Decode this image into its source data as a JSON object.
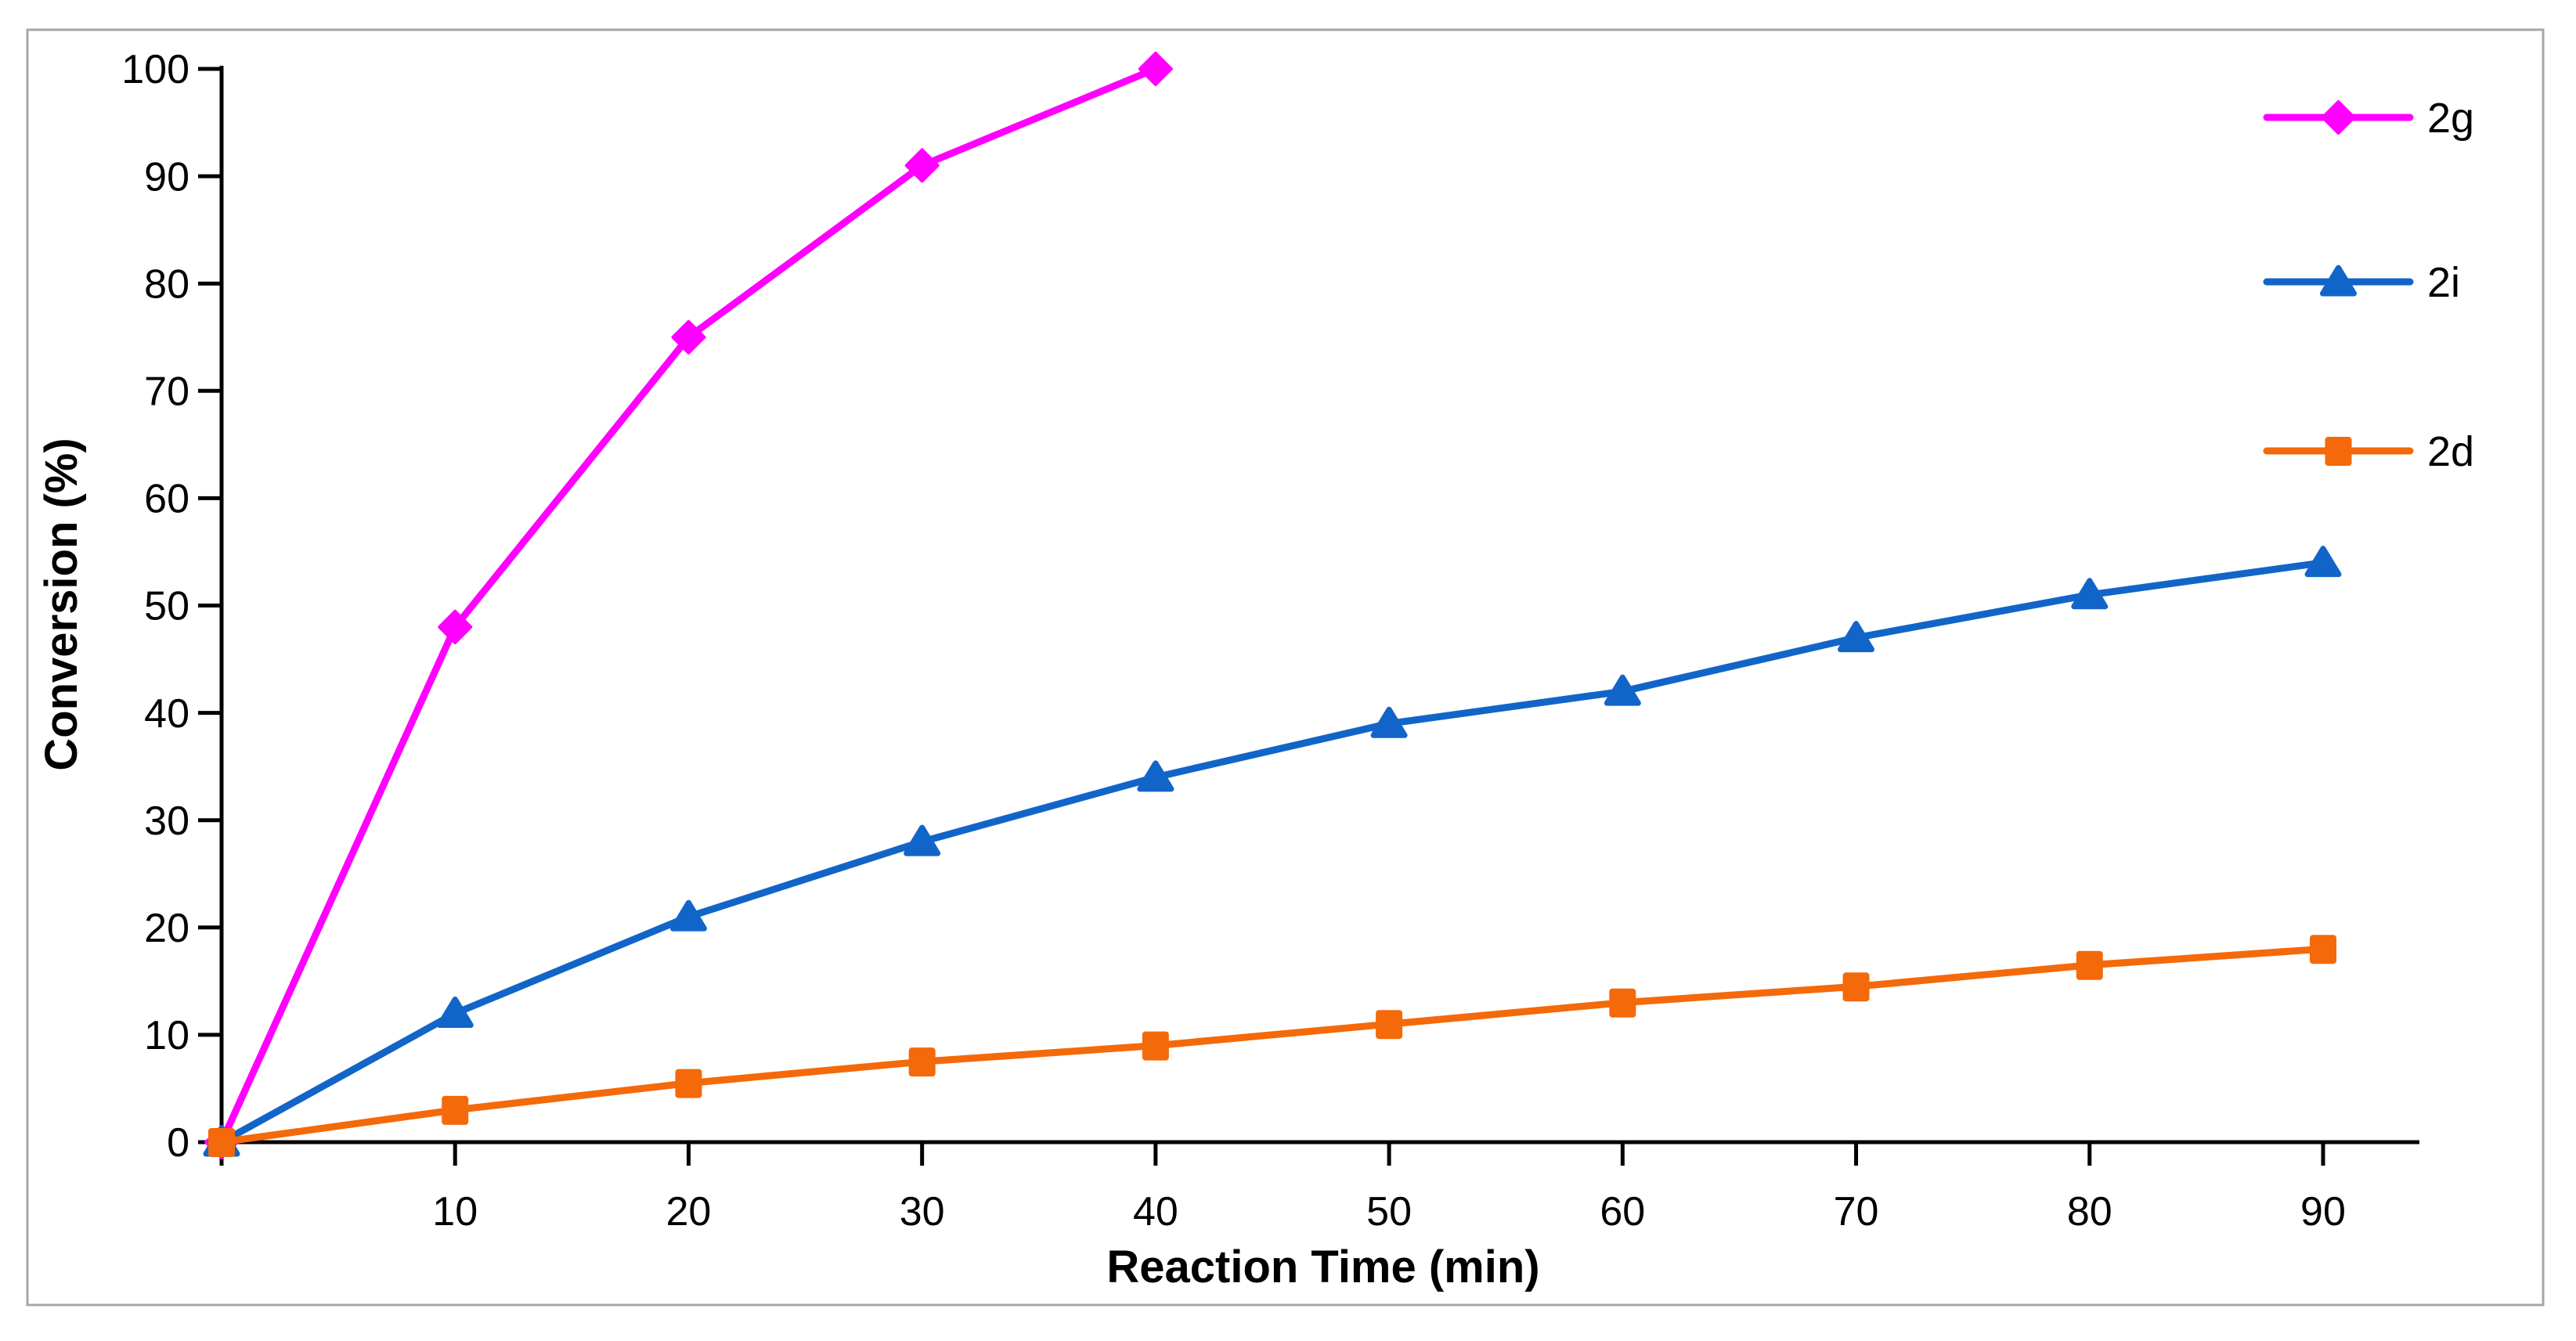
{
  "figure": {
    "background": "#FFFFFF",
    "border_color": "#A6A6A6"
  },
  "chart_data": {
    "type": "line",
    "title": "",
    "xlabel": "Reaction Time (min)",
    "ylabel": "Conversion (%)",
    "xlim": [
      0,
      94
    ],
    "ylim": [
      0,
      100
    ],
    "x_ticks": [
      10,
      20,
      30,
      40,
      50,
      60,
      70,
      80,
      90
    ],
    "y_ticks": [
      0,
      10,
      20,
      30,
      40,
      50,
      60,
      70,
      80,
      90,
      100
    ],
    "grid": "off",
    "legend_position": "right",
    "series": [
      {
        "name": "2g",
        "color": "#FF00FF",
        "marker": "diamond",
        "x": [
          0,
          10,
          20,
          30,
          40
        ],
        "y": [
          0,
          48,
          75,
          91,
          100
        ]
      },
      {
        "name": "2i",
        "color": "#1265C8",
        "marker": "triangle",
        "x": [
          0,
          10,
          20,
          30,
          40,
          50,
          60,
          70,
          80,
          90
        ],
        "y": [
          0,
          12,
          21,
          28,
          34,
          39,
          42,
          47,
          51,
          54
        ]
      },
      {
        "name": "2d",
        "color": "#F4690A",
        "marker": "square",
        "x": [
          0,
          10,
          20,
          30,
          40,
          50,
          60,
          70,
          80,
          90
        ],
        "y": [
          0,
          3,
          5.5,
          7.5,
          9,
          11,
          13,
          14.5,
          16.5,
          18
        ]
      }
    ]
  }
}
